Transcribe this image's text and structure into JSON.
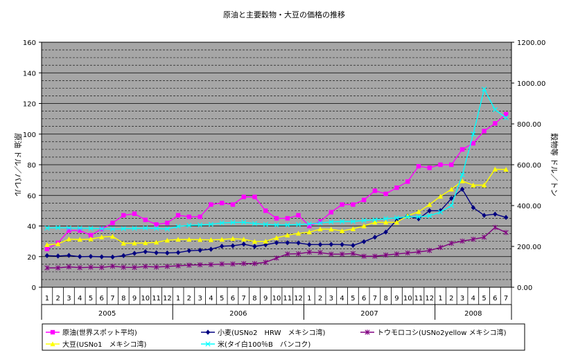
{
  "chart_data": {
    "type": "line",
    "title": "原油と主要穀物・大豆の価格の推移",
    "ylabel_left": "原油 ドル／バレル",
    "ylabel_right": "穀物等 ドル／トン",
    "ylim_left": [
      0,
      160
    ],
    "ylim_right": [
      0,
      1200
    ],
    "yticks_left": [
      "0",
      "20",
      "40",
      "60",
      "80",
      "100",
      "120",
      "140",
      "160"
    ],
    "yticks_right": [
      "0.00",
      "200.00",
      "400.00",
      "600.00",
      "800.00",
      "1000.00",
      "1200.00"
    ],
    "grid": true,
    "plot_background": "#a6a6a6",
    "months": [
      "1",
      "2",
      "3",
      "4",
      "5",
      "6",
      "7",
      "8",
      "9",
      "10",
      "11",
      "12",
      "1",
      "2",
      "3",
      "4",
      "5",
      "6",
      "7",
      "8",
      "9",
      "10",
      "11",
      "12",
      "1",
      "2",
      "3",
      "4",
      "5",
      "6",
      "7",
      "8",
      "9",
      "10",
      "11",
      "12",
      "1",
      "2",
      "3",
      "4",
      "5",
      "6",
      "7"
    ],
    "years": [
      {
        "label": "2005",
        "count": 12
      },
      {
        "label": "2006",
        "count": 12
      },
      {
        "label": "2007",
        "count": 12
      },
      {
        "label": "2008",
        "count": 7
      }
    ],
    "series": [
      {
        "name": "原油(世界スポット平均)",
        "axis": "left",
        "color": "#ff00ff",
        "marker": "square",
        "values": [
          25,
          29,
          37,
          37,
          34,
          38,
          42,
          47,
          48,
          44,
          41,
          42,
          47,
          46,
          46,
          54,
          55,
          54,
          59,
          59,
          50,
          45,
          45,
          47,
          40,
          43,
          49,
          54,
          54,
          57,
          63,
          61,
          65,
          69,
          79,
          78,
          80,
          80,
          90,
          94,
          102,
          107,
          113
        ]
      },
      {
        "name": "小麦(USNo2　HRW　メキシコ湾)",
        "axis": "right",
        "color": "#000080",
        "marker": "diamond",
        "values": [
          155,
          153,
          156,
          150,
          151,
          149,
          148,
          155,
          166,
          174,
          169,
          168,
          170,
          179,
          181,
          186,
          201,
          203,
          211,
          200,
          208,
          218,
          218,
          217,
          209,
          209,
          210,
          209,
          205,
          223,
          245,
          270,
          330,
          350,
          335,
          375,
          375,
          435,
          480,
          390,
          352,
          358,
          342
        ]
      },
      {
        "name": "トウモロコシ(USNo2yellow メキシコ湾)",
        "axis": "right",
        "color": "#800080",
        "marker": "star",
        "values": [
          95,
          95,
          100,
          96,
          98,
          97,
          103,
          98,
          97,
          102,
          99,
          102,
          105,
          108,
          110,
          111,
          114,
          114,
          116,
          116,
          122,
          143,
          163,
          164,
          172,
          170,
          162,
          162,
          165,
          152,
          152,
          158,
          163,
          168,
          173,
          180,
          195,
          215,
          226,
          235,
          245,
          293,
          268
        ]
      },
      {
        "name": "大豆(USNo1　メキシコ湾)",
        "axis": "right",
        "color": "#ffff00",
        "marker": "triangle",
        "values": [
          208,
          212,
          236,
          234,
          236,
          246,
          249,
          215,
          216,
          217,
          220,
          230,
          234,
          234,
          233,
          232,
          234,
          238,
          235,
          224,
          225,
          242,
          255,
          264,
          270,
          285,
          284,
          276,
          286,
          300,
          318,
          318,
          318,
          350,
          370,
          405,
          445,
          480,
          520,
          500,
          500,
          578,
          577
        ]
      },
      {
        "name": "米(タイ白100％B　バンコク)",
        "axis": "right",
        "color": "#00ffff",
        "marker": "x",
        "values": [
          290,
          292,
          290,
          289,
          288,
          287,
          285,
          287,
          288,
          290,
          288,
          285,
          298,
          303,
          305,
          308,
          315,
          317,
          318,
          312,
          308,
          305,
          305,
          307,
          310,
          315,
          320,
          322,
          322,
          327,
          330,
          336,
          340,
          345,
          345,
          350,
          368,
          400,
          550,
          750,
          970,
          870,
          830
        ]
      }
    ]
  }
}
